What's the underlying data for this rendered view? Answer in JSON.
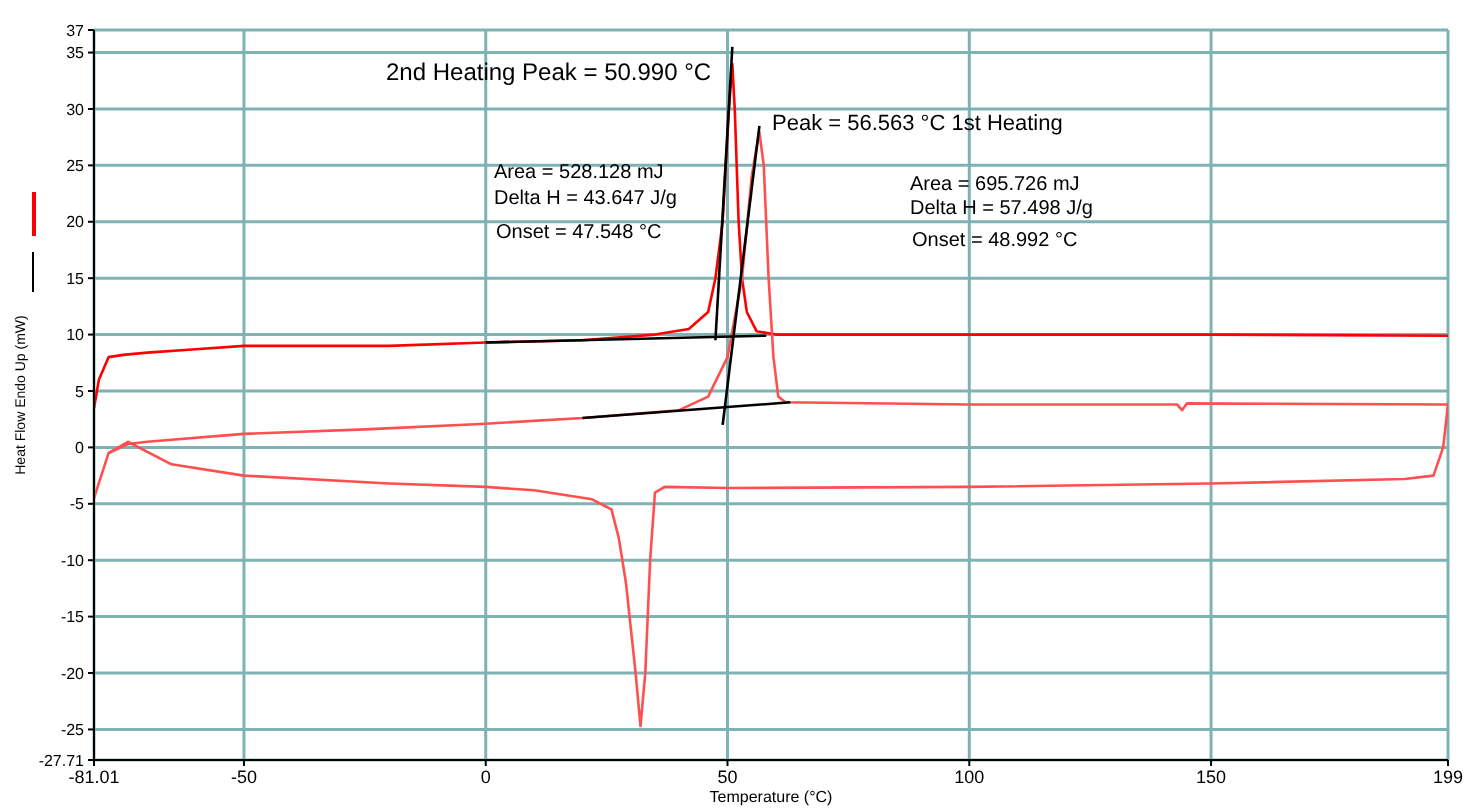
{
  "chart_data": {
    "type": "line",
    "xlabel": "Temperature (°C)",
    "ylabel": "Heat Flow Endo Up (mW)",
    "xlim": [
      -81.01,
      199
    ],
    "xticks": [
      -81.01,
      -50,
      0,
      50,
      100,
      150,
      199
    ],
    "ylim": [
      -27.71,
      37
    ],
    "yticks": [
      -27.71,
      -25,
      -20,
      -15,
      -10,
      -5,
      0,
      5,
      10,
      15,
      20,
      25,
      30,
      35,
      37
    ],
    "grid": true,
    "marker": "none",
    "line_style": "solid",
    "annotations": [
      "2nd Heating  Peak = 50.990 °C",
      "Peak = 56.563 °C  1st Heating",
      "Area = 528.128 mJ",
      "Delta H = 43.647 J/g",
      "Onset = 47.548 °C",
      "Area = 695.726 mJ",
      "Delta H = 57.498 J/g",
      "Onset = 48.992 °C"
    ],
    "series": [
      {
        "color": "#ff0000",
        "x": [
          -81.01,
          -80,
          -78,
          -75,
          -70,
          -60,
          -50,
          -20,
          0,
          20,
          35,
          42,
          46,
          47.5,
          49,
          50.3,
          50.99,
          51.5,
          52.3,
          53,
          54,
          56,
          60,
          100,
          150,
          199
        ],
        "values": [
          3.5,
          6,
          8,
          8.2,
          8.4,
          8.7,
          9,
          9,
          9.3,
          9.5,
          10,
          10.5,
          12,
          15,
          20,
          30,
          34,
          30,
          20,
          15,
          12,
          10.3,
          10,
          10,
          10,
          9.9
        ]
      },
      {
        "color": "#ff5050",
        "x": [
          -78,
          -74,
          -70,
          -50,
          -25,
          0,
          20,
          40,
          46,
          50,
          53,
          55,
          56.563,
          57.5,
          58.5,
          59.5,
          60.5,
          62,
          100,
          143,
          144,
          145,
          199
        ],
        "values": [
          -0.5,
          0.3,
          0.5,
          1.2,
          1.6,
          2.1,
          2.6,
          3.3,
          4.5,
          8,
          15,
          24,
          28,
          25,
          15,
          8,
          4.5,
          4,
          3.8,
          3.8,
          3.3,
          3.9,
          3.8
        ]
      },
      {
        "color": "#ff5050",
        "x": [
          199,
          198,
          196,
          190,
          150,
          100,
          50,
          37,
          35,
          34,
          33,
          32,
          31,
          29,
          27.5,
          26,
          22,
          10,
          0,
          -20,
          -50,
          -65,
          -74,
          -78,
          -81.01
        ],
        "values": [
          3.8,
          0,
          -2.5,
          -2.8,
          -3.2,
          -3.5,
          -3.6,
          -3.5,
          -4,
          -10,
          -20,
          -24.7,
          -20,
          -12,
          -8,
          -5.5,
          -4.6,
          -3.8,
          -3.5,
          -3.2,
          -2.5,
          -1.5,
          0.5,
          -0.5,
          -4.5
        ]
      },
      {
        "color": "#000000",
        "x": [
          0,
          58
        ],
        "values": [
          9.3,
          9.9
        ]
      },
      {
        "color": "#000000",
        "x": [
          47.5,
          51
        ],
        "values": [
          9.5,
          35.5
        ]
      },
      {
        "color": "#000000",
        "x": [
          20,
          63
        ],
        "values": [
          2.6,
          4
        ]
      },
      {
        "color": "#000000",
        "x": [
          49,
          56.6
        ],
        "values": [
          2,
          28.5
        ]
      }
    ]
  }
}
